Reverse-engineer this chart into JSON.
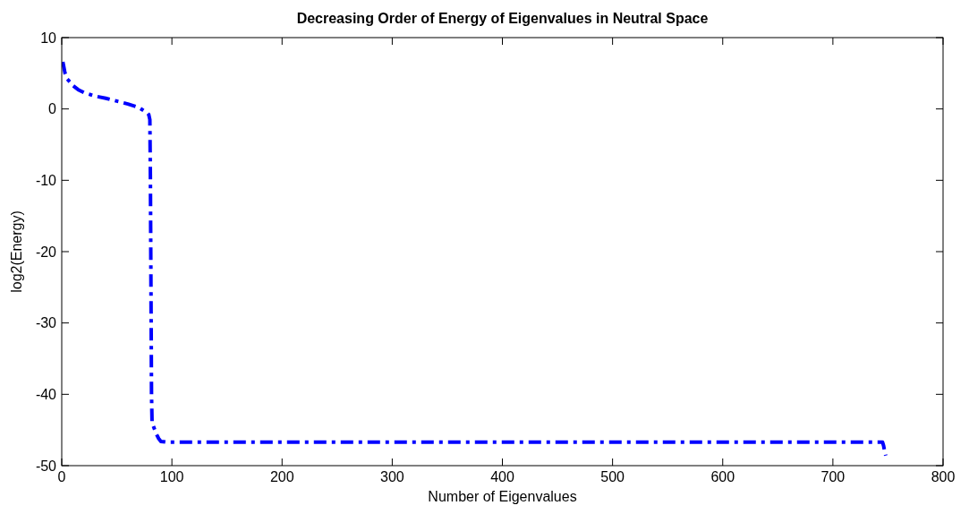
{
  "chart_data": {
    "type": "line",
    "title": "Decreasing Order of Energy of Eigenvalues in Neutral Space",
    "xlabel": "Number of Eigenvalues",
    "ylabel": "log2(Energy)",
    "x": [
      1,
      2,
      3,
      5,
      8,
      10,
      15,
      20,
      30,
      40,
      50,
      60,
      70,
      75,
      78,
      79,
      80,
      80.5,
      81,
      81.5,
      82,
      84,
      86,
      88,
      90,
      95,
      100,
      200,
      300,
      400,
      500,
      600,
      700,
      745,
      746,
      747,
      748
    ],
    "series": [
      {
        "color": "#0000ff",
        "values": [
          6.6,
          5.8,
          5.0,
          4.2,
          3.7,
          3.3,
          2.7,
          2.3,
          1.8,
          1.5,
          1.1,
          0.7,
          0.2,
          -0.3,
          -0.6,
          -0.8,
          -1.5,
          -10,
          -25,
          -40,
          -44,
          -44.8,
          -45.6,
          -46.2,
          -46.6,
          -46.7,
          -46.7,
          -46.7,
          -46.7,
          -46.7,
          -46.7,
          -46.7,
          -46.7,
          -46.7,
          -47.2,
          -48,
          -48.6
        ]
      }
    ],
    "xlim": [
      0,
      800
    ],
    "xticks": [
      0,
      100,
      200,
      300,
      400,
      500,
      600,
      700,
      800
    ],
    "ylim": [
      -50,
      10
    ],
    "yticks": [
      -50,
      -40,
      -30,
      -20,
      -10,
      0,
      10
    ],
    "line_style": "dashed",
    "grid": false
  }
}
